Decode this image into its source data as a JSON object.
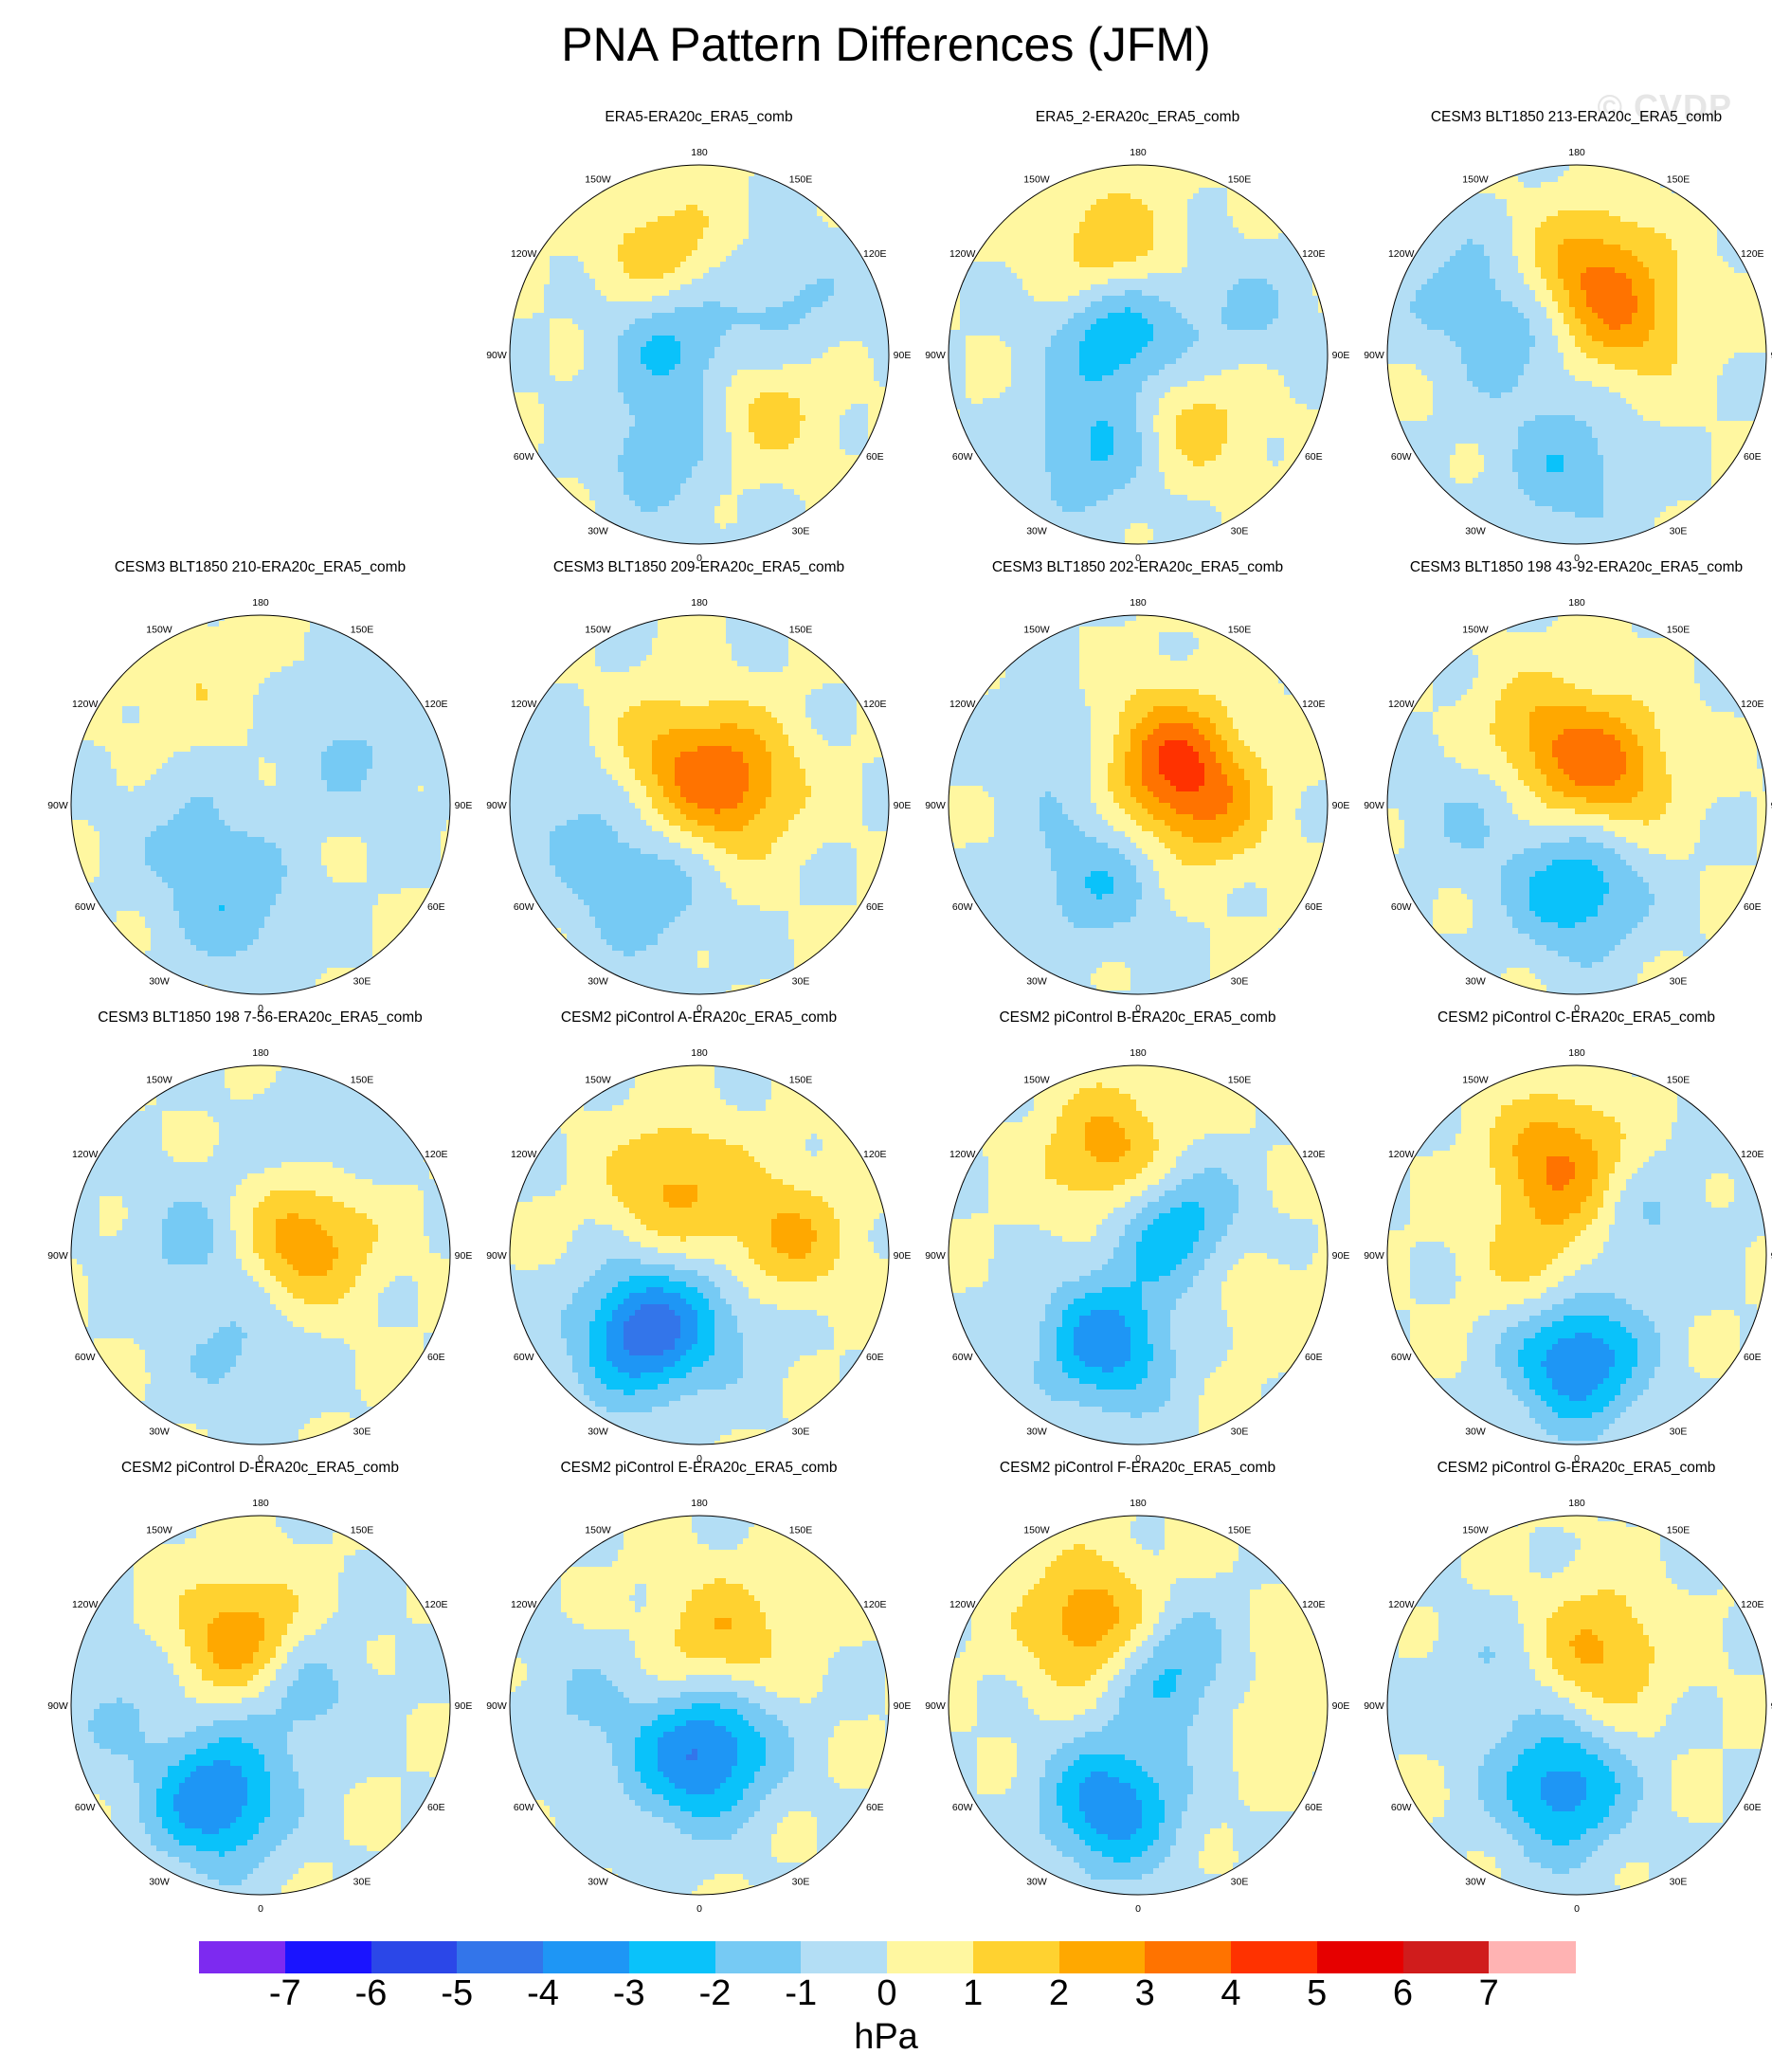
{
  "title": "PNA Pattern Differences (JFM)",
  "watermark": "© CVDP",
  "units": "hPa",
  "degree_labels": {
    "top": "180",
    "bottom": "0",
    "upper_left": "150W",
    "upper_right": "150E",
    "mid_upper_left": "120W",
    "mid_upper_right": "120E",
    "left": "90W",
    "right": "90E",
    "mid_lower_left": "60W",
    "mid_lower_right": "60E",
    "lower_left": "30W",
    "lower_right": "30E"
  },
  "panels": [
    {
      "title": "ERA5-ERA20c_ERA5_comb",
      "anomalies": [
        {
          "lon": 200,
          "colat": 0.55,
          "amp": -1.6
        },
        {
          "lon": 130,
          "colat": 0.45,
          "amp": 1.4
        },
        {
          "lon": 300,
          "colat": 0.15,
          "amp": -2.3
        },
        {
          "lon": 340,
          "colat": 0.55,
          "amp": 1.8
        },
        {
          "lon": 60,
          "colat": 0.55,
          "amp": -1.2
        }
      ]
    },
    {
      "title": "ERA5_2-ERA20c_ERA5_comb",
      "anomalies": [
        {
          "lon": 205,
          "colat": 0.55,
          "amp": -2.1
        },
        {
          "lon": 140,
          "colat": 0.45,
          "amp": 1.5
        },
        {
          "lon": 320,
          "colat": 0.15,
          "amp": -3.0
        },
        {
          "lon": 345,
          "colat": 0.55,
          "amp": 2.1
        },
        {
          "lon": 70,
          "colat": 0.6,
          "amp": -1.1
        }
      ]
    },
    {
      "title": "CESM3 BLT1850 213-ERA20c_ERA5_comb",
      "anomalies": [
        {
          "lon": 185,
          "colat": 0.6,
          "amp": -1.8
        },
        {
          "lon": 10,
          "colat": 0.45,
          "amp": 2.6
        },
        {
          "lon": 60,
          "colat": 0.3,
          "amp": 1.9
        },
        {
          "lon": 280,
          "colat": 0.3,
          "amp": -1.3
        },
        {
          "lon": 300,
          "colat": 0.7,
          "amp": -1.2
        }
      ]
    },
    {
      "title": "CESM3 BLT1850 210-ERA20c_ERA5_comb",
      "anomalies": [
        {
          "lon": 195,
          "colat": 0.55,
          "amp": -1.7
        },
        {
          "lon": 250,
          "colat": 0.4,
          "amp": -1.0
        },
        {
          "lon": 60,
          "colat": 0.55,
          "amp": -1.1
        },
        {
          "lon": 330,
          "colat": 0.75,
          "amp": 0.8
        }
      ]
    },
    {
      "title": "CESM3 BLT1850 209-ERA20c_ERA5_comb",
      "anomalies": [
        {
          "lon": 215,
          "colat": 0.55,
          "amp": -1.9
        },
        {
          "lon": 60,
          "colat": 0.2,
          "amp": 3.1
        },
        {
          "lon": 330,
          "colat": 0.3,
          "amp": 1.8
        },
        {
          "lon": 270,
          "colat": 0.7,
          "amp": -1.1
        }
      ]
    },
    {
      "title": "CESM3 BLT1850 202-ERA20c_ERA5_comb",
      "anomalies": [
        {
          "lon": 210,
          "colat": 0.45,
          "amp": -1.9
        },
        {
          "lon": 30,
          "colat": 0.3,
          "amp": 3.2
        },
        {
          "lon": 90,
          "colat": 0.35,
          "amp": 2.4
        },
        {
          "lon": 300,
          "colat": 0.5,
          "amp": -0.9
        }
      ]
    },
    {
      "title": "CESM3 BLT1850 198 43-92-ERA20c_ERA5_comb",
      "anomalies": [
        {
          "lon": 180,
          "colat": 0.45,
          "amp": -2.9
        },
        {
          "lon": 40,
          "colat": 0.25,
          "amp": 3.0
        },
        {
          "lon": 330,
          "colat": 0.4,
          "amp": 2.0
        },
        {
          "lon": 270,
          "colat": 0.55,
          "amp": -1.1
        }
      ]
    },
    {
      "title": "CESM3 BLT1850 198 7-56-ERA20c_ERA5_comb",
      "anomalies": [
        {
          "lon": 190,
          "colat": 0.55,
          "amp": -1.2
        },
        {
          "lon": 70,
          "colat": 0.25,
          "amp": 2.8
        },
        {
          "lon": 280,
          "colat": 0.35,
          "amp": -1.3
        },
        {
          "lon": 30,
          "colat": 0.7,
          "amp": -1.0
        }
      ]
    },
    {
      "title": "CESM2 piControl A-ERA20c_ERA5_comb",
      "anomalies": [
        {
          "lon": 215,
          "colat": 0.5,
          "amp": -4.6
        },
        {
          "lon": 340,
          "colat": 0.4,
          "amp": 2.2
        },
        {
          "lon": 80,
          "colat": 0.45,
          "amp": 2.2
        },
        {
          "lon": 150,
          "colat": 0.35,
          "amp": -1.0
        }
      ]
    },
    {
      "title": "CESM2 piControl B-ERA20c_ERA5_comb",
      "anomalies": [
        {
          "lon": 200,
          "colat": 0.5,
          "amp": -3.6
        },
        {
          "lon": 50,
          "colat": 0.25,
          "amp": -2.8
        },
        {
          "lon": 345,
          "colat": 0.55,
          "amp": 2.6
        },
        {
          "lon": 110,
          "colat": 0.6,
          "amp": 0.7
        }
      ]
    },
    {
      "title": "CESM2 piControl C-ERA20c_ERA5_comb",
      "anomalies": [
        {
          "lon": 180,
          "colat": 0.55,
          "amp": -4.1
        },
        {
          "lon": 350,
          "colat": 0.5,
          "amp": 3.1
        },
        {
          "lon": 260,
          "colat": 0.2,
          "amp": 1.4
        },
        {
          "lon": 60,
          "colat": 0.4,
          "amp": -1.1
        }
      ]
    },
    {
      "title": "CESM2 piControl D-ERA20c_ERA5_comb",
      "anomalies": [
        {
          "lon": 205,
          "colat": 0.55,
          "amp": -4.0
        },
        {
          "lon": 345,
          "colat": 0.35,
          "amp": 3.1
        },
        {
          "lon": 60,
          "colat": 0.2,
          "amp": -1.9
        },
        {
          "lon": 270,
          "colat": 0.75,
          "amp": -1.0
        }
      ]
    },
    {
      "title": "CESM2 piControl E-ERA20c_ERA5_comb",
      "anomalies": [
        {
          "lon": 190,
          "colat": 0.35,
          "amp": -2.2
        },
        {
          "lon": 150,
          "colat": 0.2,
          "amp": -2.6
        },
        {
          "lon": 20,
          "colat": 0.35,
          "amp": 2.1
        },
        {
          "lon": 270,
          "colat": 0.6,
          "amp": -1.0
        }
      ]
    },
    {
      "title": "CESM2 piControl F-ERA20c_ERA5_comb",
      "anomalies": [
        {
          "lon": 195,
          "colat": 0.55,
          "amp": -3.8
        },
        {
          "lon": 45,
          "colat": 0.25,
          "amp": -2.4
        },
        {
          "lon": 330,
          "colat": 0.5,
          "amp": 2.9
        },
        {
          "lon": 90,
          "colat": 0.7,
          "amp": 0.8
        }
      ]
    },
    {
      "title": "CESM2 piControl G-ERA20c_ERA5_comb",
      "anomalies": [
        {
          "lon": 190,
          "colat": 0.45,
          "amp": -3.6
        },
        {
          "lon": 20,
          "colat": 0.3,
          "amp": 2.3
        },
        {
          "lon": 290,
          "colat": 0.45,
          "amp": -1.0
        }
      ]
    }
  ],
  "colorbar": {
    "colors": [
      "#7d2af0",
      "#1a14ff",
      "#2b47e8",
      "#3375ea",
      "#1e96f5",
      "#0ac2fa",
      "#76caf4",
      "#b3def5",
      "#fff7a0",
      "#ffd230",
      "#ffa800",
      "#ff7300",
      "#ff3200",
      "#e60000",
      "#d01c1c",
      "#ffb3b3"
    ],
    "tick_labels": [
      "-7",
      "-6",
      "-5",
      "-4",
      "-3",
      "-2",
      "-1",
      "0",
      "1",
      "2",
      "3",
      "4",
      "5",
      "6",
      "7"
    ]
  }
}
